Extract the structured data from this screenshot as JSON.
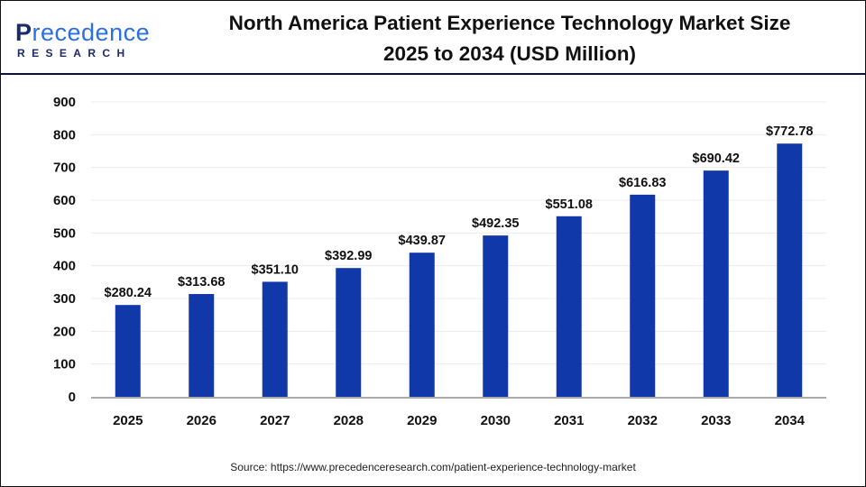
{
  "logo": {
    "text_main": "Precedence",
    "text_sub": "RESEARCH"
  },
  "title_line1": "North America Patient Experience Technology Market Size",
  "title_line2": "2025 to 2034 (USD Million)",
  "source": "Source: https://www.precedenceresearch.com/patient-experience-technology-market",
  "chart_data": {
    "type": "bar",
    "title": "North America Patient Experience Technology Market Size 2025 to 2034 (USD Million)",
    "categories": [
      "2025",
      "2026",
      "2027",
      "2028",
      "2029",
      "2030",
      "2031",
      "2032",
      "2033",
      "2034"
    ],
    "values": [
      280.24,
      313.68,
      351.1,
      392.99,
      439.87,
      492.35,
      551.08,
      616.83,
      690.42,
      772.78
    ],
    "data_labels": [
      "$280.24",
      "$313.68",
      "$351.10",
      "$392.99",
      "$439.87",
      "$492.35",
      "$551.08",
      "$616.83",
      "$690.42",
      "$772.78"
    ],
    "yticks": [
      0,
      100,
      200,
      300,
      400,
      500,
      600,
      700,
      800,
      900
    ],
    "ylim": [
      0,
      900
    ],
    "xlabel": "",
    "ylabel": "",
    "grid": true,
    "bar_color": "#1138a8"
  }
}
